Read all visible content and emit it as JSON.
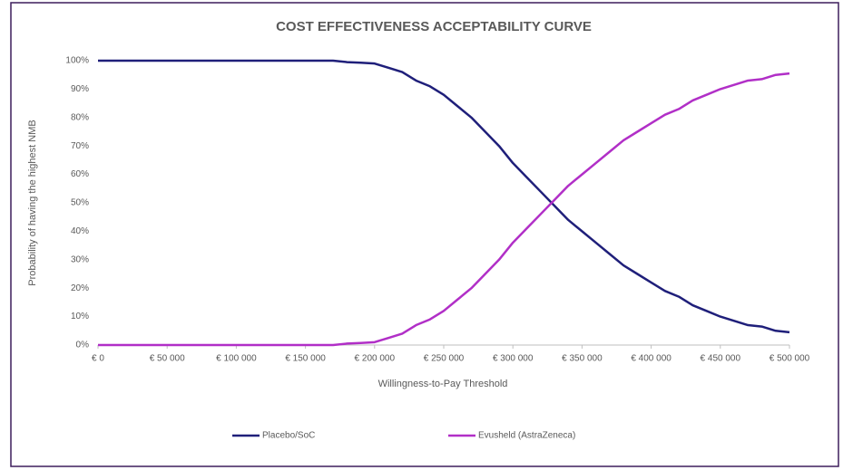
{
  "chart_data": {
    "type": "line",
    "title": "COST EFFECTIVENESS ACCEPTABILITY CURVE",
    "x_label": "Willingness-to-Pay Threshold",
    "y_label": "Probability of having the highest NMB",
    "x": [
      0,
      10000,
      20000,
      30000,
      40000,
      50000,
      60000,
      70000,
      80000,
      90000,
      100000,
      110000,
      120000,
      130000,
      140000,
      150000,
      160000,
      170000,
      180000,
      190000,
      200000,
      210000,
      220000,
      230000,
      240000,
      250000,
      260000,
      270000,
      280000,
      290000,
      300000,
      310000,
      320000,
      330000,
      340000,
      350000,
      360000,
      370000,
      380000,
      390000,
      400000,
      410000,
      420000,
      430000,
      440000,
      450000,
      460000,
      470000,
      480000,
      490000,
      500000
    ],
    "series": [
      {
        "name": "Placebo/SoC",
        "color": "#1f1f7a",
        "values": [
          100,
          100,
          100,
          100,
          100,
          100,
          100,
          100,
          100,
          100,
          100,
          100,
          100,
          100,
          100,
          100,
          100,
          100,
          99.5,
          99.3,
          99,
          97.5,
          96,
          93,
          91,
          88,
          84,
          80,
          75,
          70,
          64,
          59,
          54,
          49,
          44,
          40,
          36,
          32,
          28,
          25,
          22,
          19,
          17,
          14,
          12,
          10,
          8.5,
          7,
          6.5,
          5,
          4.5
        ]
      },
      {
        "name": "Evusheld (AstraZeneca)",
        "color": "#b12fc7",
        "values": [
          0,
          0,
          0,
          0,
          0,
          0,
          0,
          0,
          0,
          0,
          0,
          0,
          0,
          0,
          0,
          0,
          0,
          0,
          0.5,
          0.7,
          1,
          2.5,
          4,
          7,
          9,
          12,
          16,
          20,
          25,
          30,
          36,
          41,
          46,
          51,
          56,
          60,
          64,
          68,
          72,
          75,
          78,
          81,
          83,
          86,
          88,
          90,
          91.5,
          93,
          93.5,
          95,
          95.5
        ]
      }
    ],
    "xlim": [
      0,
      500000
    ],
    "ylim": [
      0,
      100
    ],
    "xticks": [
      {
        "value": 0,
        "label": "€ 0"
      },
      {
        "value": 50000,
        "label": "€ 50 000"
      },
      {
        "value": 100000,
        "label": "€ 100 000"
      },
      {
        "value": 150000,
        "label": "€ 150 000"
      },
      {
        "value": 200000,
        "label": "€ 200 000"
      },
      {
        "value": 250000,
        "label": "€ 250 000"
      },
      {
        "value": 300000,
        "label": "€ 300 000"
      },
      {
        "value": 350000,
        "label": "€ 350 000"
      },
      {
        "value": 400000,
        "label": "€ 400 000"
      },
      {
        "value": 450000,
        "label": "€ 450 000"
      },
      {
        "value": 500000,
        "label": "€ 500 000"
      }
    ],
    "yticks": [
      {
        "value": 0,
        "label": "0%"
      },
      {
        "value": 10,
        "label": "10%"
      },
      {
        "value": 20,
        "label": "20%"
      },
      {
        "value": 30,
        "label": "30%"
      },
      {
        "value": 40,
        "label": "40%"
      },
      {
        "value": 50,
        "label": "50%"
      },
      {
        "value": 60,
        "label": "60%"
      },
      {
        "value": 70,
        "label": "70%"
      },
      {
        "value": 80,
        "label": "80%"
      },
      {
        "value": 90,
        "label": "90%"
      },
      {
        "value": 100,
        "label": "100%"
      }
    ],
    "grid": false,
    "legend": "bottom"
  }
}
